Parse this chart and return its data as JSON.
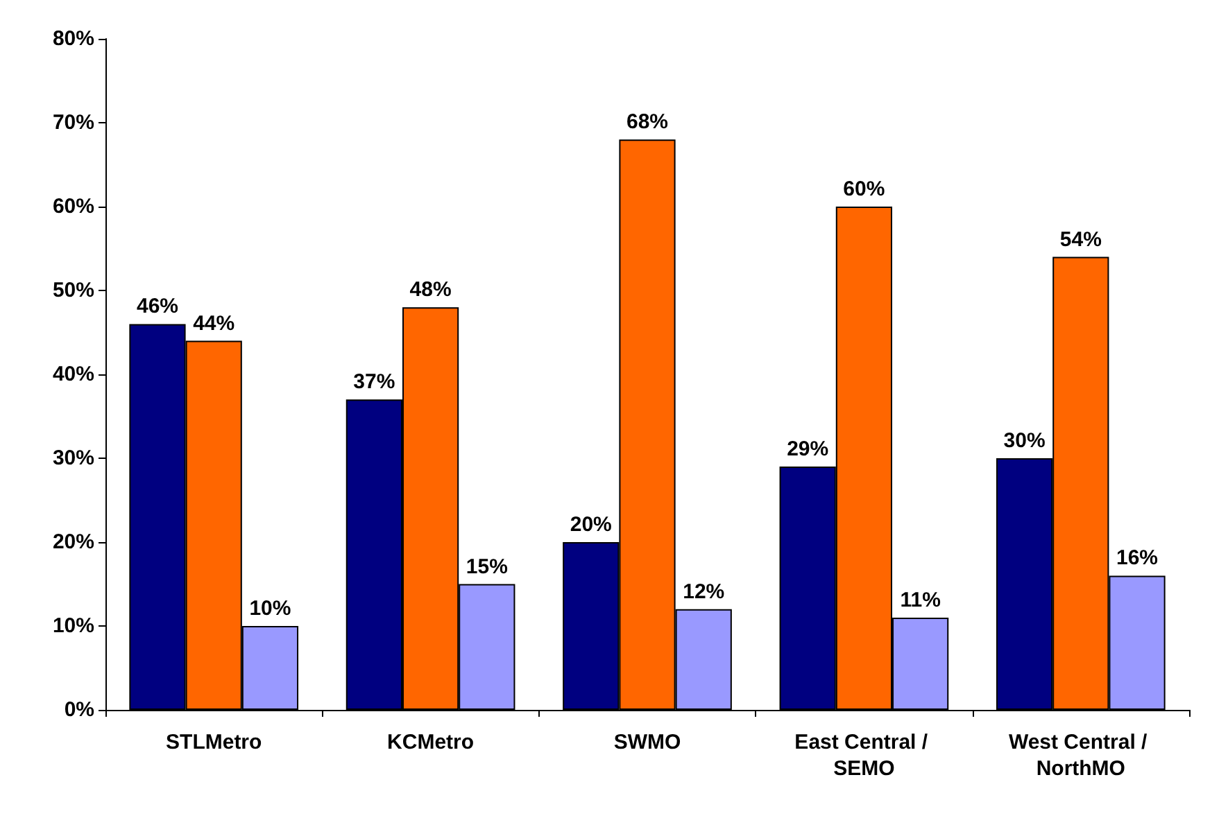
{
  "chart_data": {
    "type": "bar",
    "categories": [
      "STLMetro",
      "KCMetro",
      "SWMO",
      "East Central / SEMO",
      "West Central / NorthMO"
    ],
    "series": [
      {
        "color": "#000080",
        "values": [
          46,
          37,
          20,
          29,
          30
        ],
        "value_labels": [
          "46%",
          "37%",
          "20%",
          "29%",
          "30%"
        ]
      },
      {
        "color": "#ff6600",
        "values": [
          44,
          48,
          68,
          60,
          54
        ],
        "value_labels": [
          "44%",
          "48%",
          "68%",
          "60%",
          "54%"
        ]
      },
      {
        "color": "#9999ff",
        "values": [
          10,
          15,
          12,
          11,
          16
        ],
        "value_labels": [
          "10%",
          "15%",
          "12%",
          "11%",
          "16%"
        ]
      }
    ],
    "ylim": [
      0,
      80
    ],
    "yticks": [
      {
        "value": 0,
        "label": "0%"
      },
      {
        "value": 10,
        "label": "10%"
      },
      {
        "value": 20,
        "label": "20%"
      },
      {
        "value": 30,
        "label": "30%"
      },
      {
        "value": 40,
        "label": "40%"
      },
      {
        "value": 50,
        "label": "50%"
      },
      {
        "value": 60,
        "label": "60%"
      },
      {
        "value": 70,
        "label": "70%"
      },
      {
        "value": 80,
        "label": "80%"
      }
    ],
    "grid": false
  }
}
